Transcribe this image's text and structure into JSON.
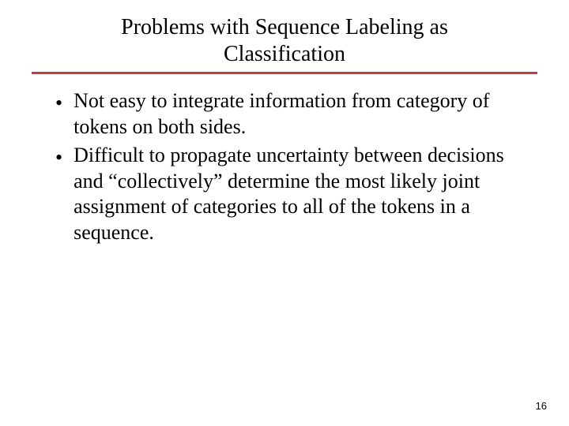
{
  "slide": {
    "title_line1": "Problems with Sequence Labeling as",
    "title_line2": "Classification",
    "title_fontsize": 28,
    "title_color": "#000000",
    "divider_color": "#c04040",
    "divider_height": 3,
    "background_color": "#ffffff",
    "bullets": [
      {
        "text": "Not easy to integrate information from category of tokens on both sides."
      },
      {
        "text": "Difficult to propagate uncertainty between decisions and “collectively” determine the most likely joint assignment of categories to all of the tokens in a sequence."
      }
    ],
    "bullet_fontsize": 26,
    "bullet_color": "#000000",
    "bullet_marker": "•",
    "page_number": "16",
    "page_number_fontsize": 13,
    "font_family": "Times New Roman"
  }
}
